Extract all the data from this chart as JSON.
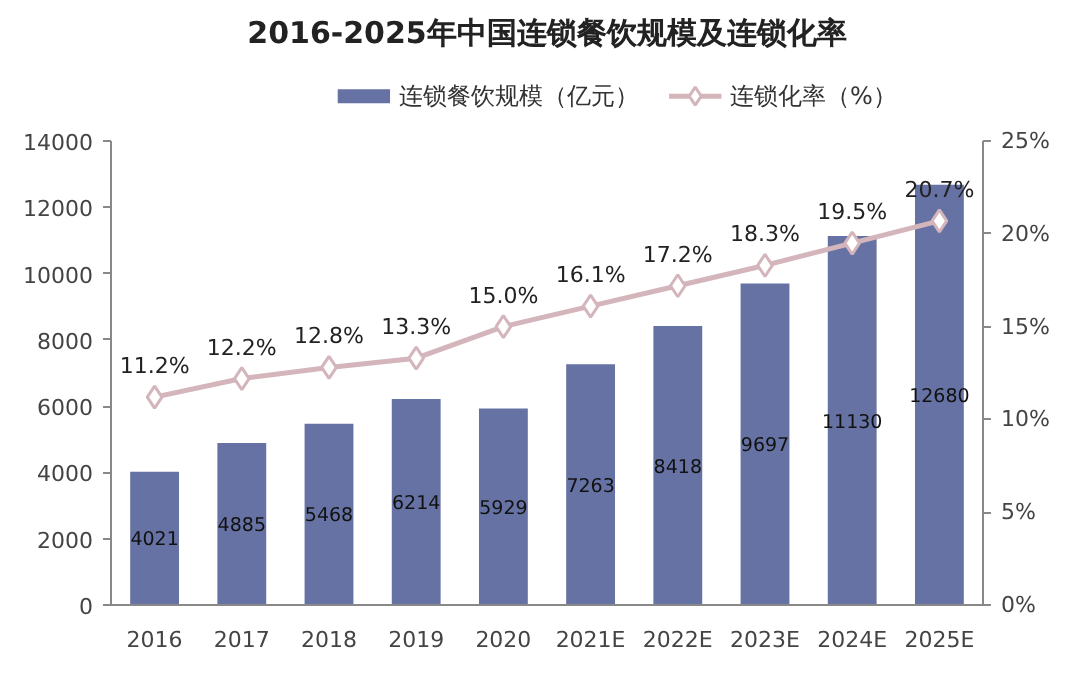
{
  "chart_data": {
    "type": "bar",
    "title": "2016-2025年中国连锁餐饮规模及连锁化率",
    "categories": [
      "2016",
      "2017",
      "2018",
      "2019",
      "2020",
      "2021E",
      "2022E",
      "2023E",
      "2024E",
      "2025E"
    ],
    "series": [
      {
        "name": "连锁餐饮规模（亿元）",
        "color": "#6572a3",
        "values": [
          4021,
          4885,
          5468,
          6214,
          5929,
          7263,
          8418,
          9697,
          11130,
          12680
        ],
        "data_labels": true
      },
      {
        "name": "连锁化率（%）",
        "type": "line",
        "axis": "y2",
        "color": "#d3b5bb",
        "marker": "diamond",
        "values": [
          11.2,
          12.2,
          12.8,
          13.3,
          15.0,
          16.1,
          17.2,
          18.3,
          19.5,
          20.7
        ],
        "value_labels": [
          "11.2%",
          "12.2%",
          "12.8%",
          "13.3%",
          "15.0%",
          "16.1%",
          "17.2%",
          "18.3%",
          "19.5%",
          "20.7%"
        ]
      }
    ],
    "ylim": [
      0,
      14000
    ],
    "yticks": [
      0,
      2000,
      4000,
      6000,
      8000,
      10000,
      12000,
      14000
    ],
    "y2lim": [
      0,
      25
    ],
    "y2ticks": [
      {
        "value": 0,
        "label": "0%"
      },
      {
        "value": 5,
        "label": "5%"
      },
      {
        "value": 10,
        "label": "10%"
      },
      {
        "value": 15,
        "label": "15%"
      },
      {
        "value": 20,
        "label": "20%"
      },
      {
        "value": 25,
        "label": "25%"
      }
    ],
    "grid": false,
    "legend": "top"
  }
}
